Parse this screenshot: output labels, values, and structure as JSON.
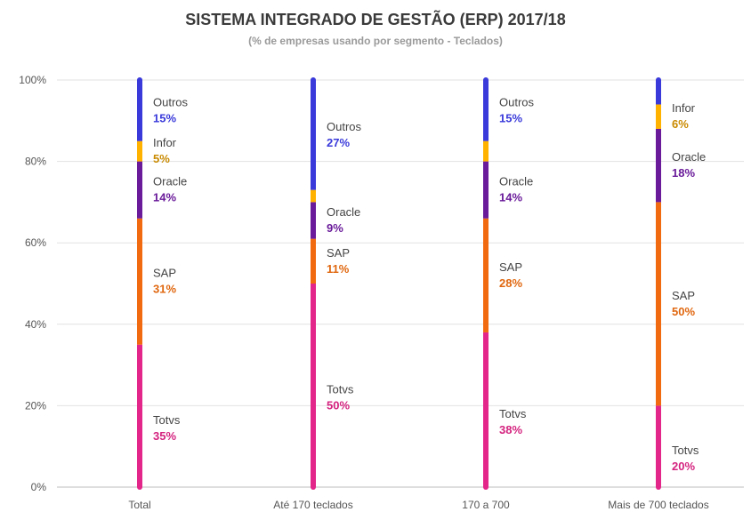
{
  "chart_data": {
    "type": "bar",
    "stacked": true,
    "title": "SISTEMA INTEGRADO DE GESTÃO (ERP) 2017/18",
    "subtitle": "(% de empresas usando por segmento - Teclados)",
    "categories": [
      "Total",
      "Até 170 teclados",
      "170 a 700",
      "Mais de 700 teclados"
    ],
    "y_ticks": [
      "0%",
      "20%",
      "40%",
      "60%",
      "80%",
      "100%"
    ],
    "ylim": [
      0,
      100
    ],
    "grid": true,
    "series": [
      {
        "name": "Totvs",
        "color": "#e3268a",
        "values": [
          35,
          50,
          38,
          20
        ],
        "labels": [
          "35%",
          "50%",
          "38%",
          "20%"
        ]
      },
      {
        "name": "SAP",
        "color": "#f26a10",
        "values": [
          31,
          11,
          28,
          50
        ],
        "labels": [
          "31%",
          "11%",
          "28%",
          "50%"
        ]
      },
      {
        "name": "Oracle",
        "color": "#6a1b9a",
        "values": [
          14,
          9,
          14,
          18
        ],
        "labels": [
          "14%",
          "9%",
          "14%",
          "18%"
        ]
      },
      {
        "name": "Infor",
        "color": "#ffb300",
        "values": [
          5,
          3,
          5,
          6
        ],
        "labels": [
          "5%",
          "",
          "",
          "6%"
        ]
      },
      {
        "name": "Outros",
        "color": "#3a3adb",
        "values": [
          15,
          27,
          15,
          6
        ],
        "labels": [
          "15%",
          "27%",
          "15%",
          ""
        ]
      }
    ],
    "value_label_colors": {
      "Totvs": "#d4237f",
      "SAP": "#e0670f",
      "Oracle": "#6a1b9a",
      "Infor": "#c98a00",
      "Outros": "#3a3adb"
    }
  }
}
